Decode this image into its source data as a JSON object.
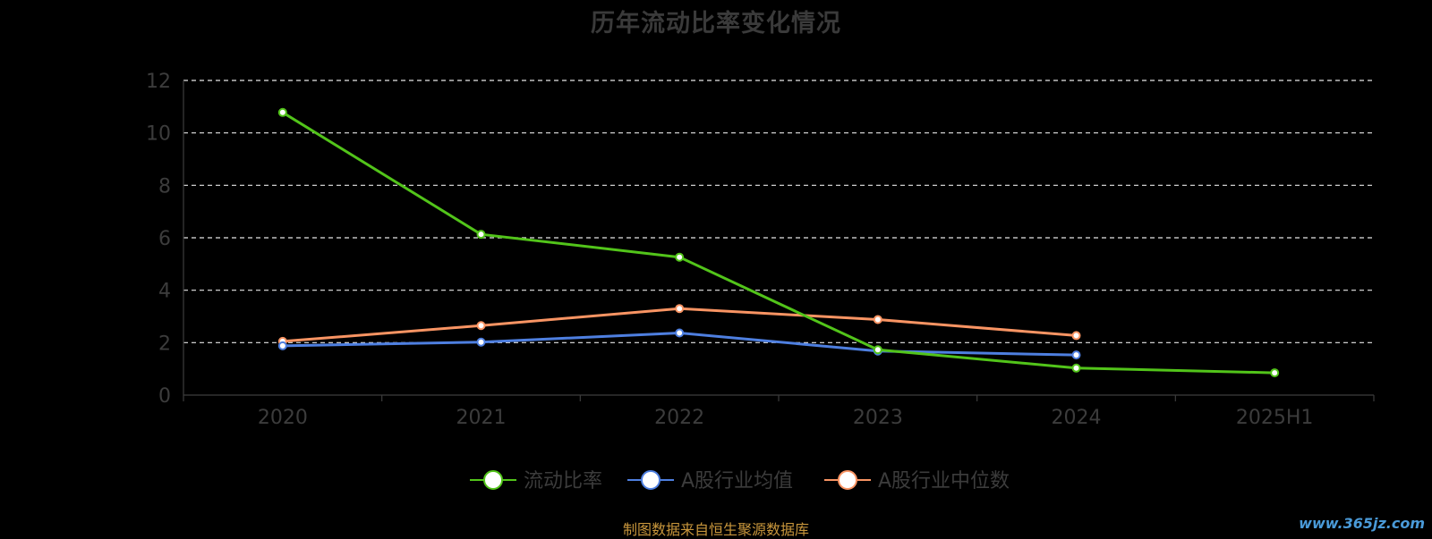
{
  "chart_data": {
    "type": "line",
    "title": "历年流动比率变化情况",
    "categories": [
      "2020",
      "2021",
      "2022",
      "2023",
      "2024",
      "2025H1"
    ],
    "ylim": [
      0,
      12
    ],
    "yticks": [
      0,
      2,
      4,
      6,
      8,
      10,
      12
    ],
    "grid": true,
    "legend_position": "bottom",
    "series": [
      {
        "name": "流动比率",
        "color": "#52c41a",
        "values": [
          10.78,
          6.13,
          5.26,
          1.73,
          1.03,
          0.85
        ]
      },
      {
        "name": "A股行业均值",
        "color": "#4e7fe0",
        "values": [
          1.88,
          2.02,
          2.37,
          1.68,
          1.53,
          null
        ]
      },
      {
        "name": "A股行业中位数",
        "color": "#f99463",
        "values": [
          2.05,
          2.65,
          3.3,
          2.88,
          2.27,
          null
        ]
      }
    ]
  },
  "footer": {
    "source": "制图数据来自恒生聚源数据库",
    "watermark": "www.365jz.com"
  }
}
